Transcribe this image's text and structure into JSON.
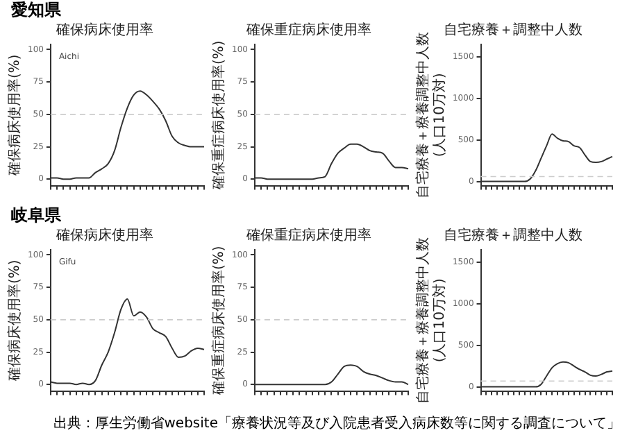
{
  "chart_data": [
    {
      "type": "line",
      "title": "確保病床使用率",
      "ylabel": "確保病床使用率(%)",
      "annotations": [
        "愛知県",
        "Aichi"
      ],
      "categories": [
        null,
        null,
        null,
        null,
        null,
        null,
        null,
        null,
        null,
        null,
        null,
        null,
        null,
        null,
        null,
        null,
        null,
        null,
        null,
        null,
        null,
        null,
        null,
        null,
        null
      ],
      "series": [
        {
          "color": "#333333",
          "values": [
            1,
            1,
            0,
            0,
            1,
            1,
            1,
            5,
            8,
            12,
            22,
            40,
            55,
            65,
            68,
            65,
            60,
            54,
            45,
            33,
            28,
            26,
            25,
            25,
            25
          ]
        }
      ],
      "ylim": [
        -5,
        104
      ],
      "yticks": [
        0,
        25,
        50,
        75,
        100
      ],
      "ref_lines": [
        {
          "axis": "y",
          "value": 50,
          "color": "#cccccc",
          "line_style": "dashed"
        }
      ],
      "grid": false,
      "legend": false,
      "marker": "none",
      "line_style": "solid"
    },
    {
      "type": "line",
      "title": "確保重症病床使用率",
      "ylabel": "確保重症病床使用率(%)",
      "categories": [
        null,
        null,
        null,
        null,
        null,
        null,
        null,
        null,
        null,
        null,
        null,
        null,
        null,
        null,
        null,
        null,
        null,
        null,
        null,
        null,
        null,
        null,
        null,
        null,
        null
      ],
      "series": [
        {
          "color": "#333333",
          "values": [
            1,
            1,
            0,
            0,
            0,
            0,
            0,
            0,
            0,
            0,
            1,
            2,
            12,
            20,
            24,
            27,
            27,
            25,
            22,
            21,
            20,
            14,
            9,
            9,
            8
          ]
        }
      ],
      "ylim": [
        -5,
        104
      ],
      "yticks": [
        0,
        25,
        50,
        75,
        100
      ],
      "ref_lines": [
        {
          "axis": "y",
          "value": 50,
          "color": "#cccccc",
          "line_style": "dashed"
        }
      ],
      "grid": false,
      "legend": false,
      "marker": "none",
      "line_style": "solid"
    },
    {
      "type": "line",
      "title": "自宅療養＋調整中人数",
      "ylabel": "自宅療養＋療養調整中人数(人口10万対)",
      "categories": [
        null,
        null,
        null,
        null,
        null,
        null,
        null,
        null,
        null,
        null,
        null,
        null,
        null,
        null,
        null,
        null,
        null,
        null,
        null,
        null,
        null,
        null,
        null,
        null,
        null
      ],
      "series": [
        {
          "color": "#333333",
          "values": [
            0,
            0,
            0,
            0,
            0,
            0,
            0,
            0,
            0,
            30,
            130,
            280,
            430,
            570,
            520,
            490,
            480,
            430,
            410,
            320,
            240,
            230,
            240,
            270,
            300
          ]
        }
      ],
      "ylim": [
        -50,
        1650
      ],
      "yticks": [
        0,
        500,
        1000,
        1500
      ],
      "ref_lines": [
        {
          "axis": "y",
          "value": 60,
          "color": "#cccccc",
          "line_style": "dashed"
        }
      ],
      "grid": false,
      "legend": false,
      "marker": "none",
      "line_style": "solid"
    },
    {
      "type": "line",
      "title": "確保病床使用率",
      "ylabel": "確保病床使用率(%)",
      "annotations": [
        "岐阜県",
        "Gifu"
      ],
      "categories": [
        null,
        null,
        null,
        null,
        null,
        null,
        null,
        null,
        null,
        null,
        null,
        null,
        null,
        null,
        null,
        null,
        null,
        null,
        null,
        null,
        null,
        null,
        null,
        null,
        null
      ],
      "series": [
        {
          "color": "#333333",
          "values": [
            2,
            1,
            1,
            1,
            0,
            1,
            0,
            3,
            15,
            25,
            40,
            58,
            66,
            53,
            56,
            52,
            43,
            40,
            37,
            28,
            21,
            22,
            26,
            28,
            27
          ]
        }
      ],
      "ylim": [
        -5,
        104
      ],
      "yticks": [
        0,
        25,
        50,
        75,
        100
      ],
      "ref_lines": [
        {
          "axis": "y",
          "value": 50,
          "color": "#cccccc",
          "line_style": "dashed"
        }
      ],
      "grid": false,
      "legend": false,
      "marker": "none",
      "line_style": "solid"
    },
    {
      "type": "line",
      "title": "確保重症病床使用率",
      "ylabel": "確保重症病床使用率(%)",
      "categories": [
        null,
        null,
        null,
        null,
        null,
        null,
        null,
        null,
        null,
        null,
        null,
        null,
        null,
        null,
        null,
        null,
        null,
        null,
        null,
        null,
        null,
        null,
        null,
        null,
        null
      ],
      "series": [
        {
          "color": "#333333",
          "values": [
            0,
            0,
            0,
            0,
            0,
            0,
            0,
            0,
            0,
            0,
            0,
            0,
            2,
            8,
            14,
            15,
            14,
            10,
            8,
            7,
            5,
            3,
            2,
            2,
            0
          ]
        }
      ],
      "ylim": [
        -5,
        104
      ],
      "yticks": [
        0,
        25,
        50,
        75,
        100
      ],
      "ref_lines": [
        {
          "axis": "y",
          "value": 50,
          "color": "#cccccc",
          "line_style": "dashed"
        }
      ],
      "grid": false,
      "legend": false,
      "marker": "none",
      "line_style": "solid"
    },
    {
      "type": "line",
      "title": "自宅療養＋調整中人数",
      "ylabel": "自宅療養＋療養調整中人数(人口10万対)",
      "annotations": [
        "出典：厚生労働省website「療養状況等及び入院患者受入病床数等に関する調査について」"
      ],
      "categories": [
        null,
        null,
        null,
        null,
        null,
        null,
        null,
        null,
        null,
        null,
        null,
        null,
        null,
        null,
        null,
        null,
        null,
        null,
        null,
        null,
        null,
        null,
        null,
        null,
        null
      ],
      "series": [
        {
          "color": "#333333",
          "values": [
            0,
            0,
            0,
            0,
            0,
            0,
            0,
            0,
            0,
            0,
            0,
            30,
            130,
            230,
            280,
            300,
            290,
            250,
            210,
            180,
            140,
            130,
            150,
            180,
            190
          ]
        }
      ],
      "ylim": [
        -50,
        1650
      ],
      "yticks": [
        0,
        500,
        1000,
        1500
      ],
      "ref_lines": [
        {
          "axis": "y",
          "value": 70,
          "color": "#cccccc",
          "line_style": "dashed"
        }
      ],
      "grid": false,
      "legend": false,
      "marker": "none",
      "line_style": "solid"
    }
  ]
}
